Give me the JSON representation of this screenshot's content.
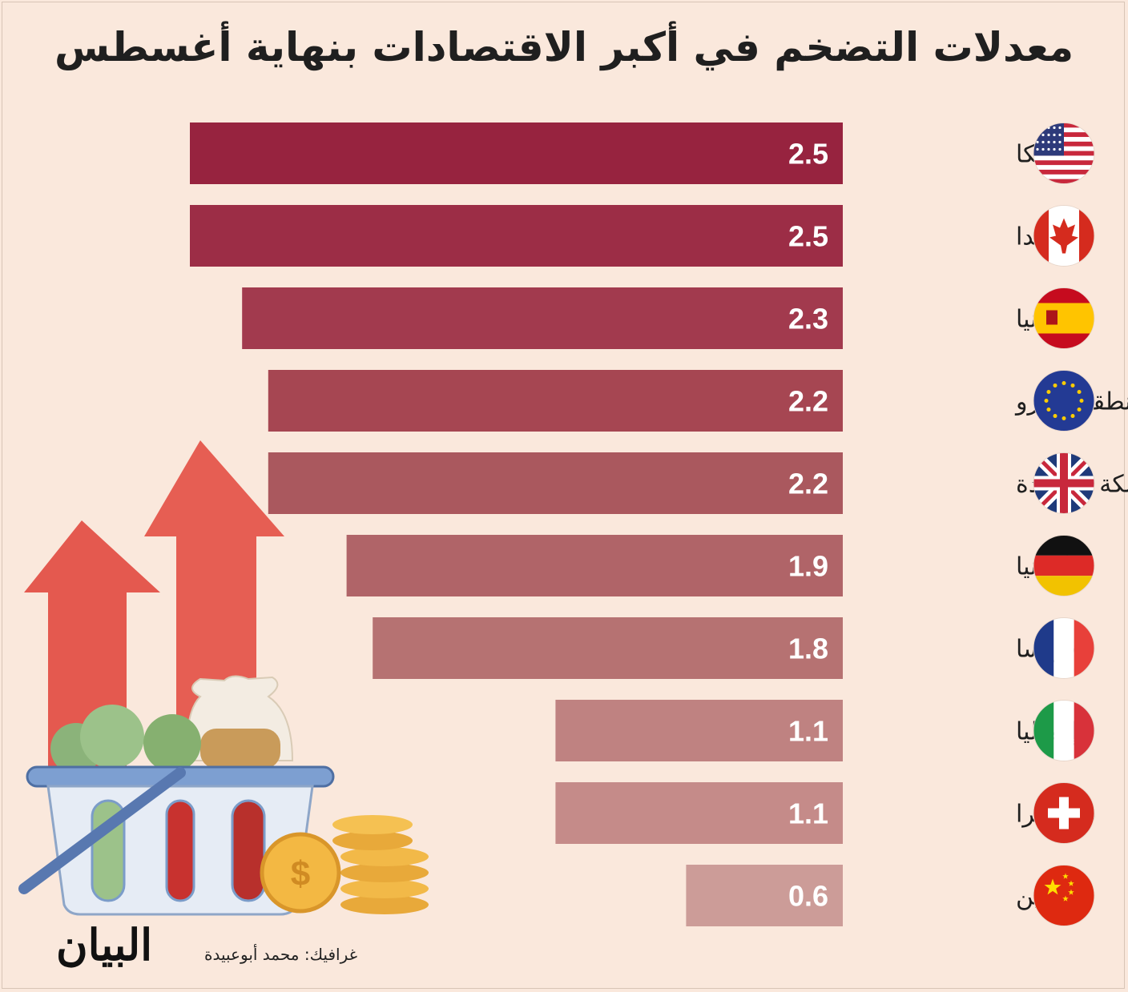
{
  "title": "معدلات التضخم في أكبر الاقتصادات بنهاية أغسطس",
  "credit": "غرافيك: محمد أبوعبيدة",
  "logo_text": "البيان",
  "chart_data": {
    "type": "bar",
    "orientation": "horizontal",
    "categories": [
      "أمريكا",
      "كندا",
      "إسبانيا",
      "منطقة اليورو",
      "المملكة المتحدة",
      "ألمانيا",
      "فرنسا",
      "إيطاليا",
      "سويسرا",
      "الصين"
    ],
    "values": [
      2.5,
      2.5,
      2.3,
      2.2,
      2.2,
      1.9,
      1.8,
      1.1,
      1.1,
      0.6
    ],
    "value_labels": [
      "2.5",
      "2.5",
      "2.3",
      "2.2",
      "2.2",
      "1.9",
      "1.8",
      "1.1",
      "1.1",
      "0.6"
    ],
    "flags": [
      "usa-flag-icon",
      "canada-flag-icon",
      "spain-flag-icon",
      "eu-flag-icon",
      "uk-flag-icon",
      "germany-flag-icon",
      "france-flag-icon",
      "italy-flag-icon",
      "switzerland-flag-icon",
      "china-flag-icon"
    ],
    "bar_colors": [
      "#97233f",
      "#9c2d46",
      "#a23a4e",
      "#a64652",
      "#aa585e",
      "#b06468",
      "#b67272",
      "#bf8281",
      "#c58b89",
      "#cc9c98"
    ],
    "xlim": [
      0,
      2.5
    ],
    "grid": false,
    "legend": "none",
    "title": "معدلات التضخم في أكبر الاقتصادات بنهاية أغسطس",
    "xlabel": "",
    "ylabel": ""
  },
  "colors": {
    "background": "#fae8dc",
    "text": "#1f1f1f"
  },
  "illustration_icon": "shopping-basket-with-rising-arrows-and-coins-icon"
}
